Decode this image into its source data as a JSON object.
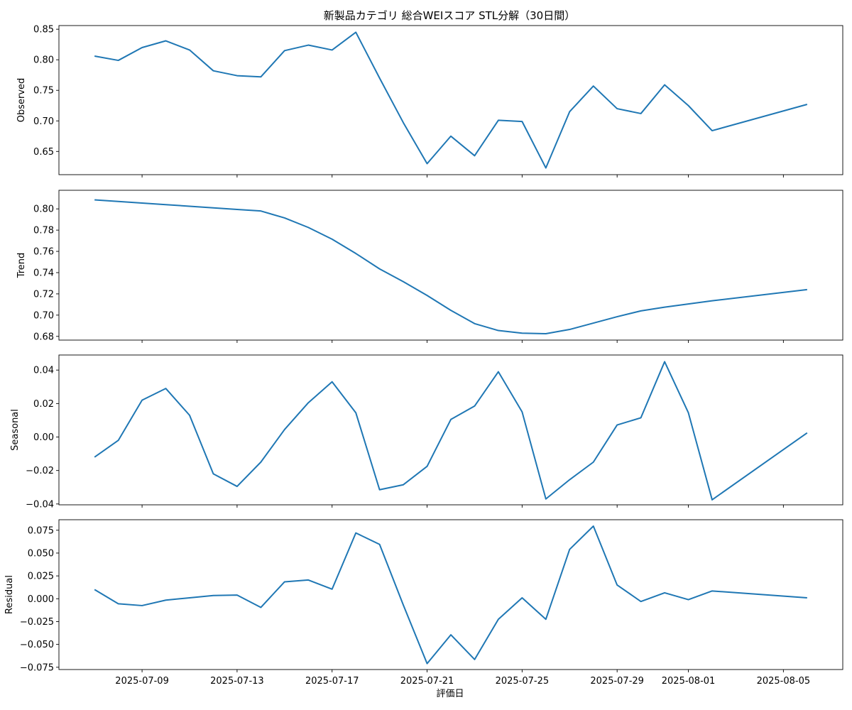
{
  "chart_data": {
    "type": "line",
    "title": "新製品カテゴリ 総合WEIスコア STL分解（30日間）",
    "xlabel": "評価日",
    "series_color": "#1f77b4",
    "x": [
      "2025-07-07",
      "2025-07-08",
      "2025-07-09",
      "2025-07-10",
      "2025-07-11",
      "2025-07-12",
      "2025-07-13",
      "2025-07-14",
      "2025-07-15",
      "2025-07-16",
      "2025-07-17",
      "2025-07-18",
      "2025-07-19",
      "2025-07-20",
      "2025-07-21",
      "2025-07-22",
      "2025-07-23",
      "2025-07-24",
      "2025-07-25",
      "2025-07-26",
      "2025-07-27",
      "2025-07-28",
      "2025-07-29",
      "2025-07-30",
      "2025-07-31",
      "2025-08-01",
      "2025-08-02",
      "2025-08-06"
    ],
    "xticks": [
      "2025-07-09",
      "2025-07-13",
      "2025-07-17",
      "2025-07-21",
      "2025-07-25",
      "2025-07-29",
      "2025-08-01",
      "2025-08-05"
    ],
    "panels": [
      {
        "ylabel": "Observed",
        "ylim": [
          0.612,
          0.856
        ],
        "yticks": [
          "0.65",
          "0.70",
          "0.75",
          "0.80",
          "0.85"
        ],
        "values": [
          0.806,
          0.799,
          0.82,
          0.831,
          0.816,
          0.782,
          0.774,
          0.772,
          0.815,
          0.824,
          0.816,
          0.845,
          0.77,
          0.697,
          0.63,
          0.675,
          0.643,
          0.701,
          0.699,
          0.623,
          0.715,
          0.757,
          0.72,
          0.712,
          0.759,
          0.725,
          0.684,
          0.727
        ]
      },
      {
        "ylabel": "Trend",
        "ylim": [
          0.6765,
          0.8175
        ],
        "yticks": [
          "0.68",
          "0.70",
          "0.72",
          "0.74",
          "0.76",
          "0.78",
          "0.80"
        ],
        "values": [
          0.8085,
          0.807,
          0.8055,
          0.804,
          0.8025,
          0.801,
          0.7995,
          0.798,
          0.7915,
          0.7825,
          0.7715,
          0.758,
          0.7435,
          0.7315,
          0.7185,
          0.7045,
          0.692,
          0.6855,
          0.683,
          0.6825,
          0.6865,
          0.6925,
          0.6985,
          0.704,
          0.7075,
          0.7105,
          0.7135,
          0.724
        ]
      },
      {
        "ylabel": "Seasonal",
        "ylim": [
          -0.0405,
          0.049
        ],
        "yticks": [
          "−0.04",
          "−0.02",
          "0.00",
          "0.02",
          "0.04"
        ],
        "values": [
          -0.012,
          -0.002,
          0.022,
          0.029,
          0.013,
          -0.022,
          -0.0295,
          -0.015,
          0.0045,
          0.0205,
          0.033,
          0.0145,
          -0.0315,
          -0.0285,
          -0.0175,
          0.0105,
          0.0185,
          0.039,
          0.015,
          -0.037,
          -0.0255,
          -0.015,
          0.0072,
          0.0115,
          0.045,
          0.0145,
          -0.0375,
          0.0025
        ]
      },
      {
        "ylabel": "Residual",
        "ylim": [
          -0.0775,
          0.0865
        ],
        "yticks": [
          "−0.075",
          "−0.050",
          "−0.025",
          "0.000",
          "0.025",
          "0.050",
          "0.075"
        ],
        "values": [
          0.01,
          -0.0055,
          -0.0075,
          -0.0015,
          0.001,
          0.0035,
          0.004,
          -0.0095,
          0.0185,
          0.0205,
          0.0105,
          0.072,
          0.0595,
          -0.007,
          -0.071,
          -0.0395,
          -0.0665,
          -0.0225,
          0.001,
          -0.0225,
          0.054,
          0.0795,
          0.015,
          -0.003,
          0.0065,
          -0.001,
          0.0085,
          0.001
        ]
      }
    ]
  }
}
